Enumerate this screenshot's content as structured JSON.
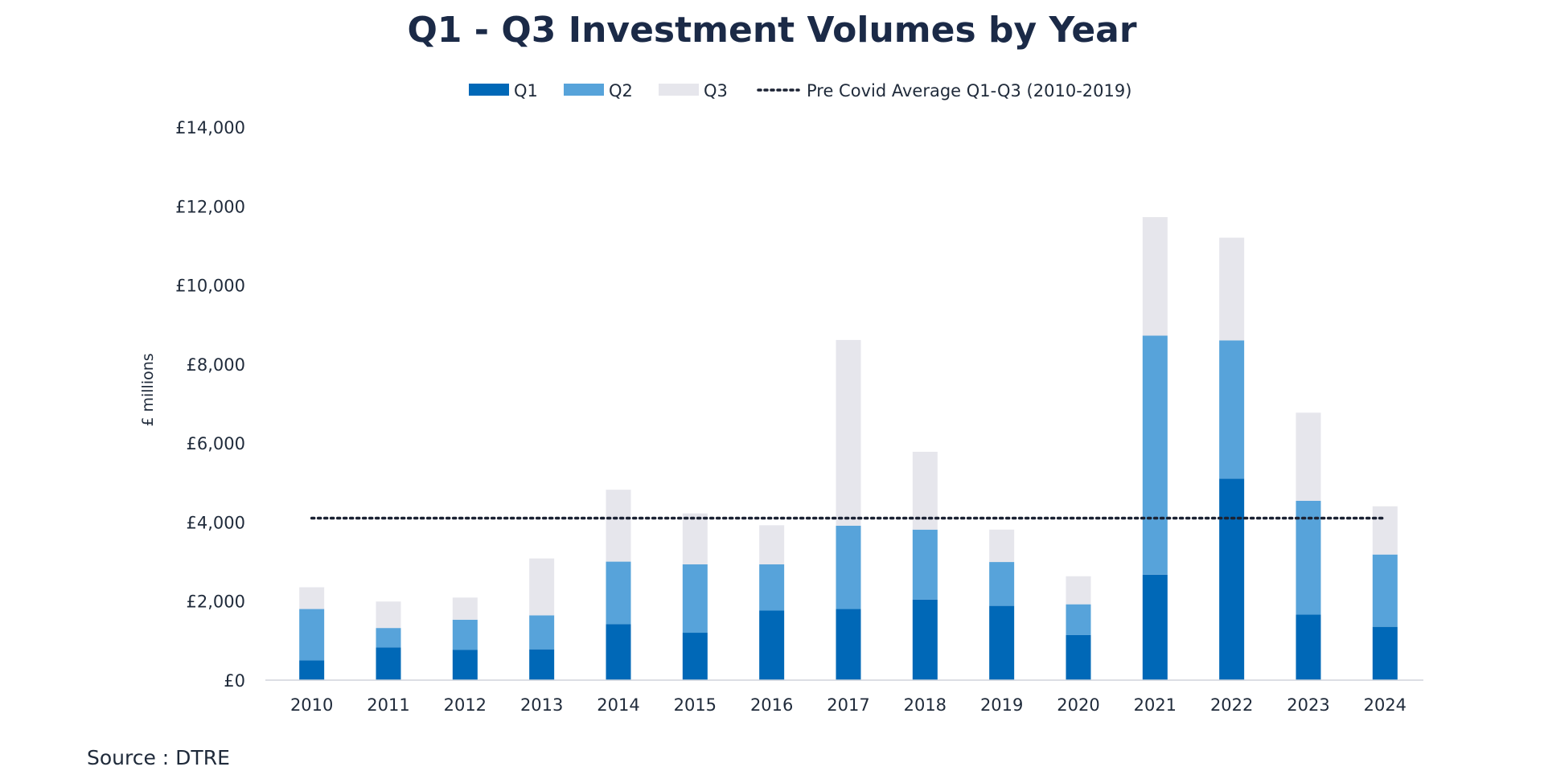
{
  "chart_data": {
    "type": "bar",
    "stacked": true,
    "title": "Q1 - Q3 Investment Volumes by Year",
    "xlabel": "",
    "ylabel": "£ millions",
    "ylim": [
      0,
      14000
    ],
    "yticks": [
      0,
      2000,
      4000,
      6000,
      8000,
      10000,
      12000,
      14000
    ],
    "ytick_labels": [
      "£0",
      "£2,000",
      "£4,000",
      "£6,000",
      "£8,000",
      "£10,000",
      "£12,000",
      "£14,000"
    ],
    "categories": [
      "2010",
      "2011",
      "2012",
      "2013",
      "2014",
      "2015",
      "2016",
      "2017",
      "2018",
      "2019",
      "2020",
      "2021",
      "2022",
      "2023",
      "2024"
    ],
    "series": [
      {
        "name": "Q1",
        "color": "#0068b7",
        "values": [
          500,
          830,
          770,
          780,
          1420,
          1200,
          1760,
          1800,
          2040,
          1880,
          1140,
          2670,
          5100,
          1660,
          1350
        ]
      },
      {
        "name": "Q2",
        "color": "#57a3da",
        "values": [
          1300,
          490,
          760,
          860,
          1580,
          1730,
          1170,
          2110,
          1770,
          1110,
          780,
          6050,
          3500,
          2880,
          1830
        ]
      },
      {
        "name": "Q3",
        "color": "#e6e6ec",
        "values": [
          550,
          670,
          560,
          1440,
          1820,
          1290,
          990,
          4700,
          1970,
          820,
          710,
          3000,
          2600,
          2230,
          1220
        ]
      }
    ],
    "reference_line": {
      "name": "Pre Covid Average Q1-Q3 (2010-2019)",
      "value": 4100,
      "color": "#1b2233",
      "style": "dotted"
    },
    "legend_position": "top-center",
    "grid": false
  },
  "source": "Source : DTRE"
}
